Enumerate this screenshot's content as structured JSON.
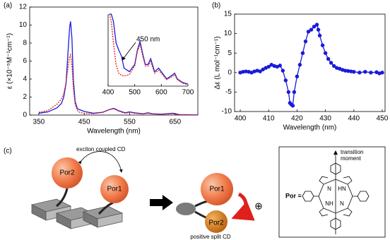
{
  "chart_data": [
    {
      "type": "line",
      "panel_label": "(a)",
      "x_label": "Wavelength (nm)",
      "y_label": "ε (×10⁻⁵M⁻¹cm⁻¹)",
      "xlim": [
        330,
        700
      ],
      "xticks": [
        350,
        450,
        550,
        650
      ],
      "ylim": [
        0,
        12
      ],
      "yticks": [
        0,
        2,
        4,
        6,
        8,
        10,
        12
      ],
      "x": [
        350,
        370,
        390,
        400,
        405,
        410,
        415,
        418,
        420,
        423,
        426,
        430,
        435,
        440,
        450,
        470,
        490,
        505,
        515,
        525,
        540,
        550,
        560,
        580,
        590,
        600,
        620,
        645,
        660,
        700
      ],
      "series": [
        {
          "name": "blue",
          "color": "#1a1adb",
          "dash": "solid",
          "values": [
            0.2,
            0.35,
            0.8,
            1.3,
            2.0,
            3.5,
            7.5,
            9.8,
            10.4,
            8.5,
            4,
            1.5,
            0.7,
            0.6,
            0.4,
            0.2,
            0.3,
            0.6,
            0.75,
            0.5,
            0.25,
            0.35,
            0.25,
            0.15,
            0.25,
            0.15,
            0.1,
            0.2,
            0.05,
            0.02
          ]
        },
        {
          "name": "red",
          "color": "#e0201b",
          "dash": "dotted",
          "values": [
            0.3,
            0.5,
            1.2,
            1.8,
            2.4,
            3.6,
            5.5,
            6.5,
            6.7,
            5.5,
            3,
            1.2,
            0.5,
            0.3,
            0.2,
            0.15,
            0.3,
            0.6,
            0.7,
            0.45,
            0.2,
            0.3,
            0.2,
            0.12,
            0.2,
            0.12,
            0.08,
            0.15,
            0.04,
            0.02
          ]
        }
      ],
      "inset": {
        "xlim": [
          400,
          700
        ],
        "xticks": [
          400,
          500,
          600,
          700
        ],
        "ylim": [
          0,
          1
        ],
        "annotation": "450 nm",
        "x": [
          405,
          412,
          420,
          430,
          440,
          450,
          460,
          480,
          500,
          510,
          520,
          530,
          540,
          550,
          560,
          575,
          590,
          600,
          620,
          640,
          650,
          660,
          680,
          700
        ],
        "series": [
          {
            "name": "blue",
            "color": "#1a1adb",
            "dash": "solid",
            "values": [
              1,
              1,
              0.9,
              0.6,
              0.5,
              0.42,
              0.25,
              0.2,
              0.3,
              0.5,
              0.62,
              0.45,
              0.3,
              0.3,
              0.38,
              0.2,
              0.25,
              0.2,
              0.1,
              0.15,
              0.18,
              0.1,
              0.05,
              0.03
            ]
          },
          {
            "name": "red",
            "color": "#e0201b",
            "dash": "dotted",
            "values": [
              1,
              0.9,
              0.6,
              0.3,
              0.18,
              0.15,
              0.14,
              0.16,
              0.28,
              0.48,
              0.58,
              0.42,
              0.28,
              0.28,
              0.34,
              0.18,
              0.22,
              0.18,
              0.09,
              0.13,
              0.16,
              0.09,
              0.04,
              0.02
            ]
          }
        ]
      }
    },
    {
      "type": "line",
      "panel_label": "(b)",
      "x_label": "Wavelength (nm)",
      "y_label": "Δε (L mol⁻¹cm⁻¹)",
      "markers": true,
      "xlim": [
        398,
        451
      ],
      "xticks": [
        400,
        410,
        420,
        430,
        440,
        450
      ],
      "ylim": [
        -10,
        15
      ],
      "yticks": [
        -10,
        -5,
        0,
        5,
        10,
        15
      ],
      "x": [
        400,
        401,
        402,
        403,
        404,
        405,
        406,
        407,
        408,
        409,
        410,
        411,
        412,
        413,
        414,
        415,
        416,
        417,
        417.5,
        418,
        418.5,
        419,
        420,
        421,
        422,
        423,
        424,
        425,
        426,
        427,
        427.5,
        428,
        429,
        430,
        431,
        432,
        433,
        434,
        435,
        436,
        437,
        438,
        439,
        440,
        442,
        444,
        446,
        448,
        449,
        450
      ],
      "series": [
        {
          "name": "CD",
          "color": "#1a1adb",
          "values": [
            0,
            0.2,
            0.3,
            0.2,
            0,
            0.3,
            0.5,
            0.3,
            0.8,
            1.2,
            1.5,
            2,
            1.7,
            1.5,
            1.8,
            0.5,
            -2,
            -5,
            -7.8,
            -8.2,
            -8.5,
            -5,
            -1,
            2,
            5,
            8,
            10.5,
            11,
            11.8,
            12.3,
            11,
            9.5,
            7,
            5,
            3.5,
            2.5,
            1.7,
            1.2,
            1,
            0.7,
            0.5,
            0.4,
            0.3,
            0.2,
            0,
            0.2,
            0,
            0.1,
            -0.2,
            0
          ]
        }
      ]
    }
  ],
  "diagram": {
    "panel_label": "(c)",
    "left_caption": "exciton coupled CD",
    "left_spheres": [
      "Por2",
      "Por1"
    ],
    "right_spheres": [
      "Por1",
      "Por2"
    ],
    "right_caption": "positive split CD",
    "sign": "⊕",
    "moment_label": [
      "transition",
      "moment"
    ],
    "por_label": "Por =",
    "atoms": [
      "N",
      "HN",
      "NH",
      "N"
    ]
  }
}
